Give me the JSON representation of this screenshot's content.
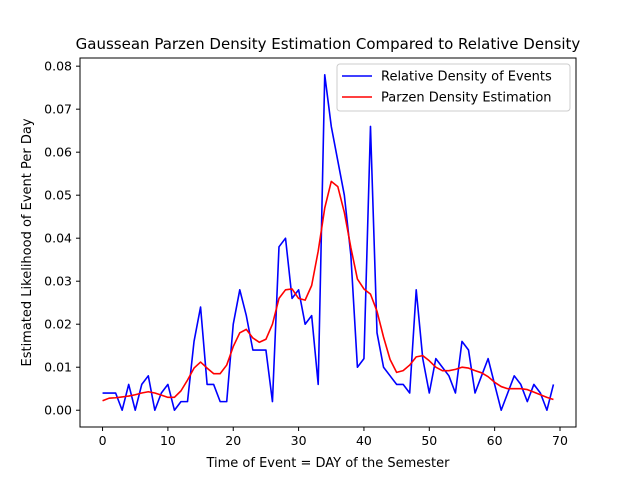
{
  "chart_data": {
    "type": "line",
    "title": "Gaussean Parzen Density Estimation Compared to Relative Density",
    "xlabel": "Time of Event = DAY of the Semester",
    "ylabel": "Estimated Likelihood of Event Per Day",
    "xlim": [
      -3.45,
      72.45
    ],
    "ylim": [
      -0.0039,
      0.0819
    ],
    "xticks": [
      0,
      10,
      20,
      30,
      40,
      50,
      60,
      70
    ],
    "xtick_labels": [
      "0",
      "10",
      "20",
      "30",
      "40",
      "50",
      "60",
      "70"
    ],
    "yticks": [
      0.0,
      0.01,
      0.02,
      0.03,
      0.04,
      0.05,
      0.06,
      0.07,
      0.08
    ],
    "ytick_labels": [
      "0.00",
      "0.01",
      "0.02",
      "0.03",
      "0.04",
      "0.05",
      "0.06",
      "0.07",
      "0.08"
    ],
    "grid": false,
    "legend_position": "top-right",
    "series": [
      {
        "name": "Relative Density of Events",
        "color": "#0000ff",
        "x": [
          0,
          1,
          2,
          3,
          4,
          5,
          6,
          7,
          8,
          9,
          10,
          11,
          12,
          13,
          14,
          15,
          16,
          17,
          18,
          19,
          20,
          21,
          22,
          23,
          24,
          25,
          26,
          27,
          28,
          29,
          30,
          31,
          32,
          33,
          34,
          35,
          36,
          37,
          38,
          39,
          40,
          41,
          42,
          43,
          44,
          45,
          46,
          47,
          48,
          49,
          50,
          51,
          52,
          53,
          54,
          55,
          56,
          57,
          58,
          59,
          60,
          61,
          62,
          63,
          64,
          65,
          66,
          67,
          68,
          69
        ],
        "y": [
          0.004,
          0.004,
          0.004,
          0.0,
          0.006,
          0.0,
          0.006,
          0.008,
          0.0,
          0.004,
          0.006,
          0.0,
          0.002,
          0.002,
          0.016,
          0.024,
          0.006,
          0.006,
          0.002,
          0.002,
          0.02,
          0.028,
          0.022,
          0.014,
          0.014,
          0.014,
          0.002,
          0.038,
          0.04,
          0.026,
          0.028,
          0.02,
          0.022,
          0.006,
          0.078,
          0.066,
          0.058,
          0.05,
          0.036,
          0.01,
          0.012,
          0.066,
          0.018,
          0.01,
          0.008,
          0.006,
          0.006,
          0.004,
          0.028,
          0.012,
          0.004,
          0.012,
          0.01,
          0.008,
          0.004,
          0.016,
          0.014,
          0.004,
          0.008,
          0.012,
          0.006,
          0.0,
          0.004,
          0.008,
          0.006,
          0.002,
          0.006,
          0.004,
          0.0,
          0.006
        ]
      },
      {
        "name": "Parzen Density Estimation",
        "color": "#ff0000",
        "x": [
          0,
          1,
          2,
          3,
          4,
          5,
          6,
          7,
          8,
          9,
          10,
          11,
          12,
          13,
          14,
          15,
          16,
          17,
          18,
          19,
          20,
          21,
          22,
          23,
          24,
          25,
          26,
          27,
          28,
          29,
          30,
          31,
          32,
          33,
          34,
          35,
          36,
          37,
          38,
          39,
          40,
          41,
          42,
          43,
          44,
          45,
          46,
          47,
          48,
          49,
          50,
          51,
          52,
          53,
          54,
          55,
          56,
          57,
          58,
          59,
          60,
          61,
          62,
          63,
          64,
          65,
          66,
          67,
          68,
          69
        ],
        "y": [
          0.0022,
          0.0028,
          0.0029,
          0.0031,
          0.0033,
          0.0036,
          0.004,
          0.0043,
          0.004,
          0.0035,
          0.003,
          0.003,
          0.0045,
          0.007,
          0.0098,
          0.0112,
          0.0098,
          0.0085,
          0.0085,
          0.0105,
          0.0148,
          0.018,
          0.0188,
          0.0168,
          0.0158,
          0.0165,
          0.02,
          0.026,
          0.028,
          0.0282,
          0.026,
          0.0256,
          0.029,
          0.037,
          0.047,
          0.0532,
          0.052,
          0.046,
          0.0378,
          0.0305,
          0.0282,
          0.027,
          0.023,
          0.017,
          0.0118,
          0.0088,
          0.0092,
          0.0105,
          0.0124,
          0.0127,
          0.0115,
          0.01,
          0.0092,
          0.0092,
          0.0095,
          0.01,
          0.0098,
          0.0092,
          0.0087,
          0.0078,
          0.0065,
          0.0055,
          0.005,
          0.005,
          0.005,
          0.0048,
          0.0042,
          0.0036,
          0.003,
          0.0025
        ]
      }
    ]
  }
}
